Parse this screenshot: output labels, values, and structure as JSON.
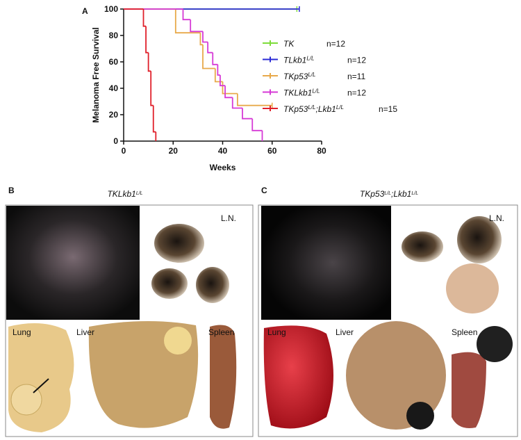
{
  "chart_data": {
    "type": "survival-step",
    "panel_label": "A",
    "xlabel": "Weeks",
    "ylabel": "Melanoma Free Survival",
    "xlim": [
      0,
      80
    ],
    "ylim": [
      0,
      100
    ],
    "xticks": [
      0,
      20,
      40,
      60,
      80
    ],
    "yticks": [
      0,
      20,
      40,
      60,
      80,
      100
    ],
    "series": [
      {
        "name": [
          "TK"
        ],
        "n_label": "n=12",
        "color": "#7ddc3a",
        "censored": true,
        "x": [
          0,
          70
        ],
        "values": [
          100,
          100
        ]
      },
      {
        "name": [
          "TLkb1",
          "L/L"
        ],
        "n_label": "n=12",
        "color": "#2b2bd6",
        "censored": true,
        "x": [
          0,
          71
        ],
        "values": [
          100,
          100
        ]
      },
      {
        "name": [
          "TKp53",
          "L/L"
        ],
        "n_label": "n=11",
        "color": "#e8a94a",
        "censored": true,
        "x": [
          0,
          21,
          31,
          32,
          37,
          40,
          46,
          60
        ],
        "values": [
          100,
          82,
          73,
          55,
          45,
          36,
          27,
          27
        ]
      },
      {
        "name": [
          "TKLkb1",
          "L/L"
        ],
        "n_label": "n=12",
        "color": "#d63ad6",
        "censored": false,
        "x": [
          0,
          24,
          27,
          32,
          34,
          36,
          38,
          39,
          41,
          44,
          48,
          52,
          56
        ],
        "values": [
          100,
          92,
          83,
          75,
          67,
          58,
          50,
          42,
          33,
          25,
          17,
          8,
          0
        ]
      },
      {
        "name": [
          "TKp53",
          "L/L",
          ";Lkb1",
          "L/L"
        ],
        "n_label": "n=15",
        "color": "#e0202a",
        "censored": false,
        "x": [
          0,
          8,
          9,
          10,
          11,
          12,
          13
        ],
        "values": [
          100,
          87,
          67,
          53,
          27,
          7,
          0
        ]
      }
    ]
  },
  "panels": [
    {
      "letter": "B",
      "title": [
        "TKLkb1",
        "L/L"
      ],
      "labels": [
        "L.N.",
        "Lung",
        "Liver",
        "Spleen"
      ]
    },
    {
      "letter": "C",
      "title": [
        "TKp53",
        "L/L",
        ";Lkb1",
        "L/L"
      ],
      "labels": [
        "L.N.",
        "Lung",
        "Liver",
        "Spleen"
      ]
    }
  ]
}
